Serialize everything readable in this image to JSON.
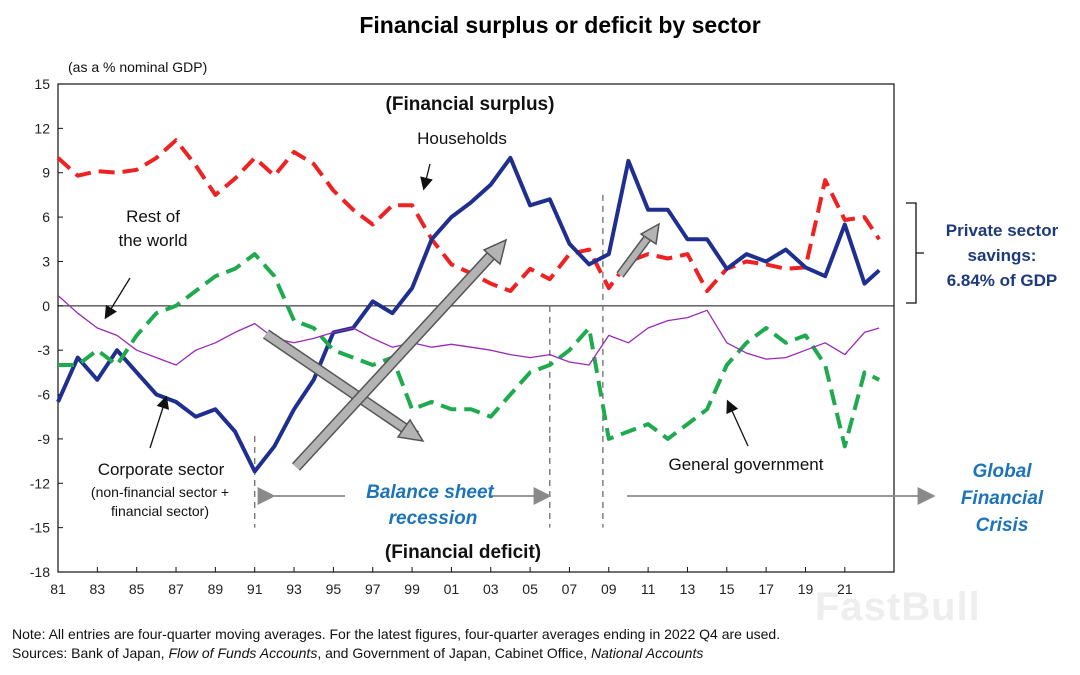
{
  "chart_data": {
    "type": "line",
    "title": "Financial surplus or deficit by sector",
    "ylabel": "(as a % nominal GDP)",
    "ylim": [
      -18,
      15
    ],
    "yticks": [
      15,
      12,
      9,
      6,
      3,
      0,
      -3,
      -6,
      -9,
      -12,
      -15,
      -18
    ],
    "xlim": [
      1981,
      2023.5
    ],
    "xtick_labels": [
      "81",
      "83",
      "85",
      "87",
      "89",
      "91",
      "93",
      "95",
      "97",
      "99",
      "01",
      "03",
      "05",
      "07",
      "09",
      "11",
      "13",
      "15",
      "17",
      "19",
      "21"
    ],
    "series": [
      {
        "name": "Households",
        "color": "#ee2222",
        "style": "dashed",
        "points": [
          [
            1981,
            10
          ],
          [
            1982,
            8.8
          ],
          [
            1983,
            9.1
          ],
          [
            1984,
            9.0
          ],
          [
            1985,
            9.2
          ],
          [
            1986,
            10
          ],
          [
            1987,
            11.2
          ],
          [
            1988,
            9.5
          ],
          [
            1989,
            7.5
          ],
          [
            1990,
            8.6
          ],
          [
            1991,
            10
          ],
          [
            1992,
            8.8
          ],
          [
            1993,
            10.4
          ],
          [
            1994,
            9.6
          ],
          [
            1995,
            7.8
          ],
          [
            1996,
            6.5
          ],
          [
            1997,
            5.5
          ],
          [
            1998,
            6.8
          ],
          [
            1999,
            6.8
          ],
          [
            2000,
            4.5
          ],
          [
            2001,
            2.8
          ],
          [
            2002,
            2.2
          ],
          [
            2003,
            1.5
          ],
          [
            2004,
            1.0
          ],
          [
            2005,
            2.5
          ],
          [
            2006,
            1.8
          ],
          [
            2007,
            3.5
          ],
          [
            2008,
            3.8
          ],
          [
            2009,
            1.2
          ],
          [
            2010,
            3.0
          ],
          [
            2011,
            3.5
          ],
          [
            2012,
            3.2
          ],
          [
            2013,
            3.5
          ],
          [
            2014,
            1.0
          ],
          [
            2015,
            2.5
          ],
          [
            2016,
            3.0
          ],
          [
            2017,
            2.8
          ],
          [
            2018,
            2.5
          ],
          [
            2019,
            2.6
          ],
          [
            2020,
            8.5
          ],
          [
            2021,
            5.8
          ],
          [
            2022,
            6.0
          ],
          [
            2022.75,
            4.5
          ]
        ]
      },
      {
        "name": "Corporate sector (non-financial sector + financial sector)",
        "color": "#1f2f8f",
        "style": "solid",
        "points": [
          [
            1981,
            -6.5
          ],
          [
            1982,
            -3.5
          ],
          [
            1983,
            -5
          ],
          [
            1984,
            -3
          ],
          [
            1985,
            -4.5
          ],
          [
            1986,
            -6
          ],
          [
            1987,
            -6.5
          ],
          [
            1988,
            -7.5
          ],
          [
            1989,
            -7
          ],
          [
            1990,
            -8.5
          ],
          [
            1991,
            -11.2
          ],
          [
            1992,
            -9.5
          ],
          [
            1993,
            -7
          ],
          [
            1994,
            -5
          ],
          [
            1995,
            -1.8
          ],
          [
            1996,
            -1.5
          ],
          [
            1997,
            0.3
          ],
          [
            1998,
            -0.5
          ],
          [
            1999,
            1.2
          ],
          [
            2000,
            4.5
          ],
          [
            2001,
            6.0
          ],
          [
            2002,
            7.0
          ],
          [
            2003,
            8.2
          ],
          [
            2004,
            10
          ],
          [
            2005,
            6.8
          ],
          [
            2006,
            7.2
          ],
          [
            2007,
            4.2
          ],
          [
            2008,
            2.8
          ],
          [
            2009,
            3.5
          ],
          [
            2010,
            9.8
          ],
          [
            2011,
            6.5
          ],
          [
            2012,
            6.5
          ],
          [
            2013,
            4.5
          ],
          [
            2014,
            4.5
          ],
          [
            2015,
            2.5
          ],
          [
            2016,
            3.5
          ],
          [
            2017,
            3.0
          ],
          [
            2018,
            3.8
          ],
          [
            2019,
            2.6
          ],
          [
            2020,
            2.0
          ],
          [
            2021,
            5.5
          ],
          [
            2022,
            1.5
          ],
          [
            2022.75,
            2.4
          ]
        ]
      },
      {
        "name": "General government",
        "color": "#1faa4f",
        "style": "dashed",
        "points": [
          [
            1981,
            -4
          ],
          [
            1982,
            -4
          ],
          [
            1983,
            -3
          ],
          [
            1984,
            -4
          ],
          [
            1985,
            -2
          ],
          [
            1986,
            -0.5
          ],
          [
            1987,
            0
          ],
          [
            1988,
            1
          ],
          [
            1989,
            2
          ],
          [
            1990,
            2.5
          ],
          [
            1991,
            3.5
          ],
          [
            1992,
            2
          ],
          [
            1993,
            -1
          ],
          [
            1994,
            -1.5
          ],
          [
            1995,
            -3
          ],
          [
            1996,
            -3.5
          ],
          [
            1997,
            -4
          ],
          [
            1998,
            -3.5
          ],
          [
            1999,
            -7
          ],
          [
            2000,
            -6.5
          ],
          [
            2001,
            -7
          ],
          [
            2002,
            -7
          ],
          [
            2003,
            -7.5
          ],
          [
            2004,
            -6
          ],
          [
            2005,
            -4.5
          ],
          [
            2006,
            -4
          ],
          [
            2007,
            -3
          ],
          [
            2008,
            -1.5
          ],
          [
            2009,
            -9
          ],
          [
            2010,
            -8.5
          ],
          [
            2011,
            -8
          ],
          [
            2012,
            -9
          ],
          [
            2013,
            -8
          ],
          [
            2014,
            -7
          ],
          [
            2015,
            -4
          ],
          [
            2016,
            -2.5
          ],
          [
            2017,
            -1.5
          ],
          [
            2018,
            -2.5
          ],
          [
            2019,
            -2
          ],
          [
            2020,
            -4
          ],
          [
            2021,
            -9.5
          ],
          [
            2022,
            -4.5
          ],
          [
            2022.75,
            -5
          ]
        ]
      },
      {
        "name": "Rest of the world",
        "color": "#9a2ab5",
        "style": "solid",
        "points": [
          [
            1981,
            0.7
          ],
          [
            1982,
            -0.5
          ],
          [
            1983,
            -1.5
          ],
          [
            1984,
            -2
          ],
          [
            1985,
            -3
          ],
          [
            1986,
            -3.5
          ],
          [
            1987,
            -4
          ],
          [
            1988,
            -3
          ],
          [
            1989,
            -2.5
          ],
          [
            1990,
            -1.8
          ],
          [
            1991,
            -1.2
          ],
          [
            1992,
            -2.2
          ],
          [
            1993,
            -2.5
          ],
          [
            1994,
            -2.2
          ],
          [
            1995,
            -1.8
          ],
          [
            1996,
            -1.5
          ],
          [
            1997,
            -2.2
          ],
          [
            1998,
            -2.8
          ],
          [
            1999,
            -2.5
          ],
          [
            2000,
            -2.8
          ],
          [
            2001,
            -2.6
          ],
          [
            2002,
            -2.8
          ],
          [
            2003,
            -3.0
          ],
          [
            2004,
            -3.3
          ],
          [
            2005,
            -3.5
          ],
          [
            2006,
            -3.3
          ],
          [
            2007,
            -3.8
          ],
          [
            2008,
            -4.0
          ],
          [
            2009,
            -2.0
          ],
          [
            2010,
            -2.5
          ],
          [
            2011,
            -1.5
          ],
          [
            2012,
            -1.0
          ],
          [
            2013,
            -0.8
          ],
          [
            2014,
            -0.3
          ],
          [
            2015,
            -2.5
          ],
          [
            2016,
            -3.2
          ],
          [
            2017,
            -3.6
          ],
          [
            2018,
            -3.5
          ],
          [
            2019,
            -3.0
          ],
          [
            2020,
            -2.5
          ],
          [
            2021,
            -3.3
          ],
          [
            2022,
            -1.8
          ],
          [
            2022.75,
            -1.5
          ]
        ]
      }
    ],
    "vertical_markers": [
      1991,
      2006,
      2008.7
    ],
    "annotations": {
      "surplus": "(Financial surplus)",
      "deficit": "(Financial deficit)",
      "households": "Households",
      "rest_world_1": "Rest of",
      "rest_world_2": "the world",
      "corporate_1": "Corporate sector",
      "corporate_2": "(non-financial sector +",
      "corporate_3": "financial sector)",
      "government": "General government",
      "bsr_1": "Balance sheet",
      "bsr_2": "recession",
      "gfc_1": "Global",
      "gfc_2": "Financial",
      "gfc_3": "Crisis",
      "savings_1": "Private sector",
      "savings_2": "savings:",
      "savings_3": "6.84% of GDP"
    }
  },
  "footer": {
    "note": "Note: All entries are four-quarter moving averages. For the latest figures, four-quarter averages ending in 2022 Q4 are used.",
    "sources_prefix": "Sources: Bank of Japan, ",
    "sources_fof": "Flow of Funds Accounts",
    "sources_mid": ", and Government of Japan, Cabinet Office, ",
    "sources_na": "National Accounts"
  },
  "watermark": "FastBull"
}
